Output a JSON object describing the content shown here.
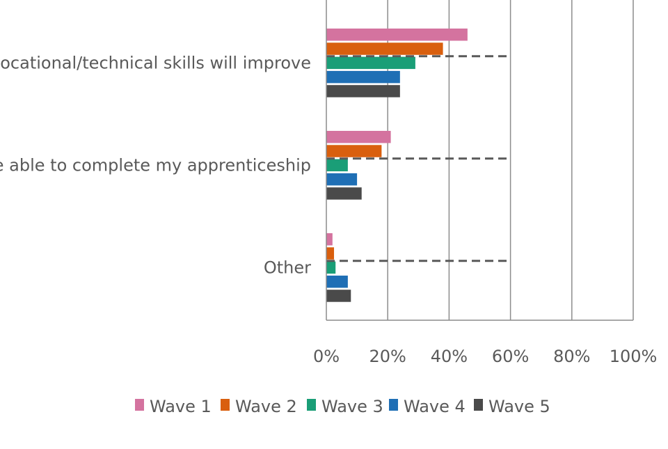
{
  "chart_data": {
    "type": "bar",
    "orientation": "horizontal",
    "categories": [
      "My vocational/technical skills will improve",
      "I will be able to complete my apprenticeship",
      "Other"
    ],
    "series": [
      {
        "name": "Wave 1",
        "color": "#d4739f",
        "values": [
          46,
          21,
          2
        ]
      },
      {
        "name": "Wave 2",
        "color": "#d95f0e",
        "values": [
          38,
          18,
          2.5
        ]
      },
      {
        "name": "Wave 3",
        "color": "#1a9e77",
        "values": [
          29,
          7,
          3
        ]
      },
      {
        "name": "Wave 4",
        "color": "#1f6fb5",
        "values": [
          24,
          10,
          7
        ]
      },
      {
        "name": "Wave 5",
        "color": "#4a4a4a",
        "values": [
          24,
          11.5,
          8
        ]
      }
    ],
    "reference_line": {
      "value": 60,
      "style": "dashed",
      "color": "#595959"
    },
    "x_ticks": [
      "0%",
      "20%",
      "40%",
      "60%",
      "80%",
      "100%"
    ],
    "xlim": [
      0,
      100
    ],
    "grid": true,
    "legend_position": "bottom",
    "title": "",
    "xlabel": "",
    "ylabel": ""
  }
}
